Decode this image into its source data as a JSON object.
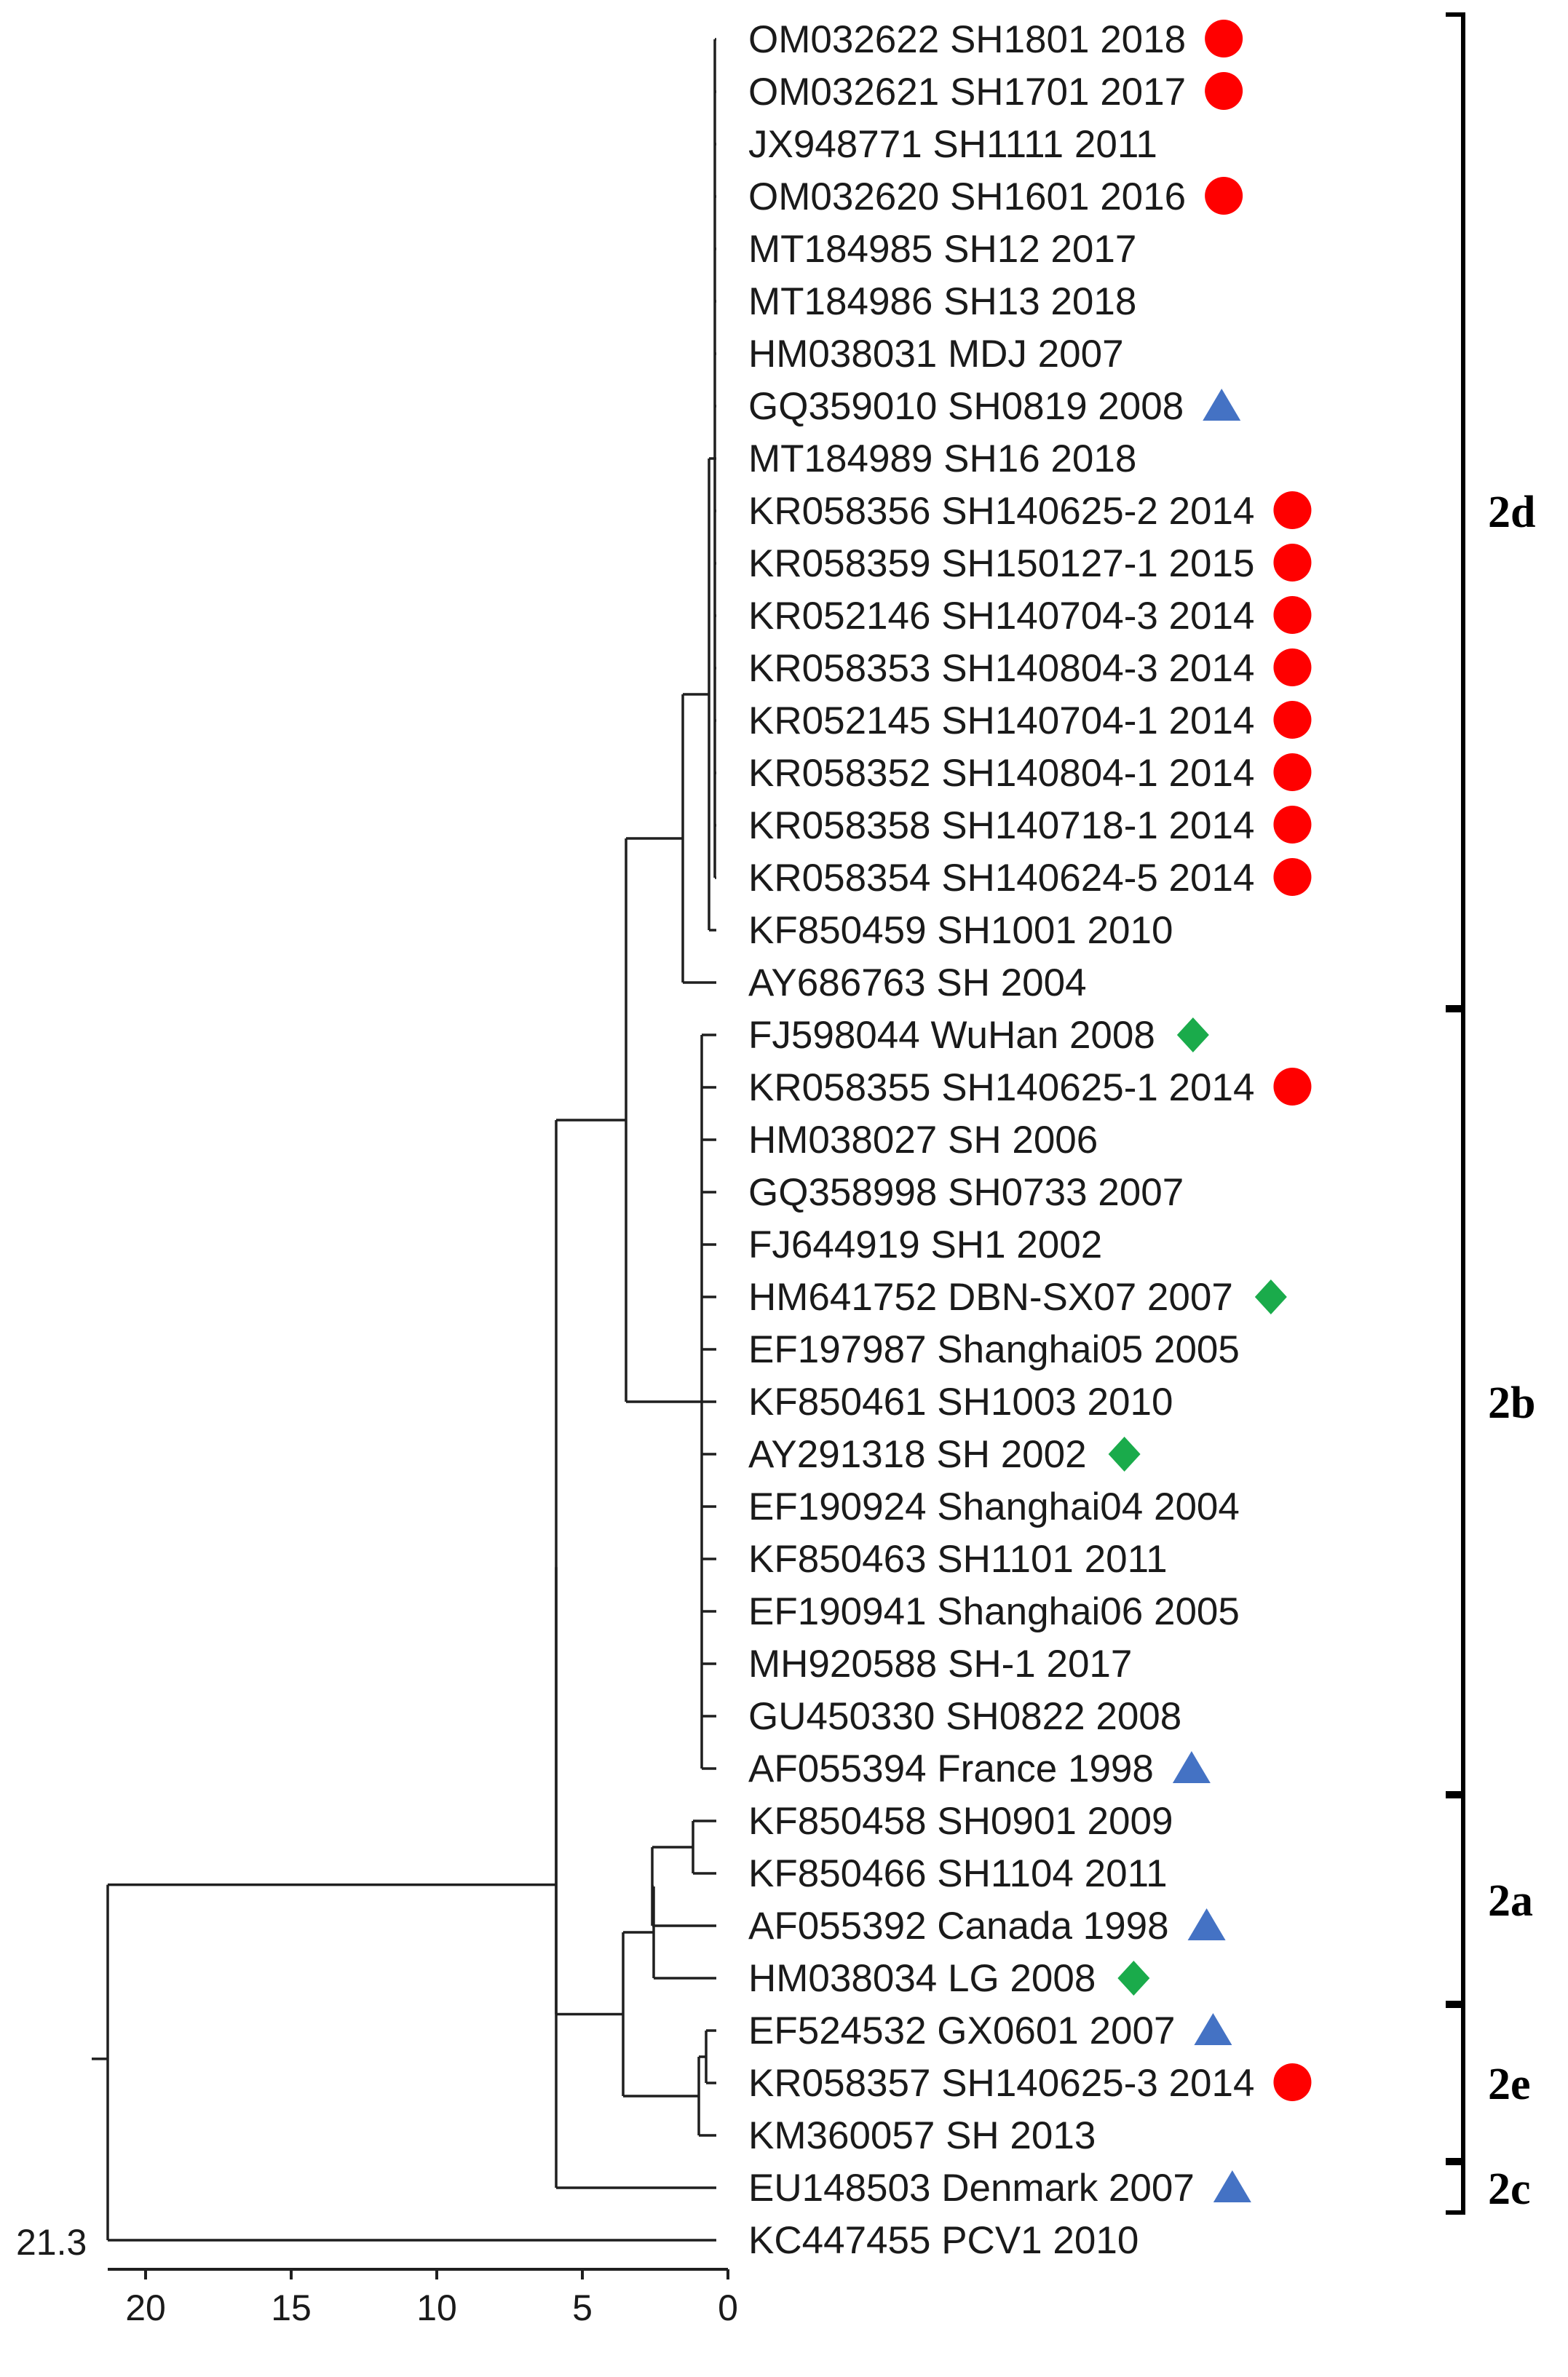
{
  "tree": {
    "scale_label": "21.3",
    "axis_ticks": [
      {
        "label": "20",
        "value": 20
      },
      {
        "label": "15",
        "value": 15
      },
      {
        "label": "10",
        "value": 10
      },
      {
        "label": "5",
        "value": 5
      },
      {
        "label": "0",
        "value": 0
      }
    ],
    "marker_colors": {
      "circle": "#ff0000",
      "triangle": "#4472c4",
      "diamond": "#1aab4b"
    },
    "leaves": [
      {
        "label": "OM032622 SH1801 2018",
        "marker": "circle"
      },
      {
        "label": "OM032621 SH1701 2017",
        "marker": "circle"
      },
      {
        "label": "JX948771 SH1111 2011",
        "marker": "none"
      },
      {
        "label": "OM032620 SH1601 2016",
        "marker": "circle"
      },
      {
        "label": "MT184985 SH12 2017",
        "marker": "none"
      },
      {
        "label": "MT184986 SH13 2018",
        "marker": "none"
      },
      {
        "label": "HM038031 MDJ 2007",
        "marker": "none"
      },
      {
        "label": "GQ359010 SH0819 2008",
        "marker": "triangle"
      },
      {
        "label": "MT184989 SH16 2018",
        "marker": "none"
      },
      {
        "label": "KR058356 SH140625-2 2014",
        "marker": "circle"
      },
      {
        "label": "KR058359 SH150127-1 2015",
        "marker": "circle"
      },
      {
        "label": "KR052146  SH140704-3 2014",
        "marker": "circle"
      },
      {
        "label": "KR058353  SH140804-3 2014",
        "marker": "circle"
      },
      {
        "label": "KR052145 SH140704-1 2014",
        "marker": "circle"
      },
      {
        "label": "KR058352 SH140804-1 2014",
        "marker": "circle"
      },
      {
        "label": "KR058358 SH140718-1 2014",
        "marker": "circle"
      },
      {
        "label": "KR058354  SH140624-5 2014",
        "marker": "circle"
      },
      {
        "label": "KF850459 SH1001 2010",
        "marker": "none"
      },
      {
        "label": "AY686763 SH 2004",
        "marker": "none"
      },
      {
        "label": "FJ598044 WuHan 2008",
        "marker": "diamond"
      },
      {
        "label": "KR058355 SH140625-1 2014",
        "marker": "circle"
      },
      {
        "label": "HM038027 SH 2006",
        "marker": "none"
      },
      {
        "label": "GQ358998 SH0733 2007",
        "marker": "none"
      },
      {
        "label": "FJ644919 SH1 2002",
        "marker": "none"
      },
      {
        "label": "HM641752 DBN-SX07 2007",
        "marker": "diamond"
      },
      {
        "label": "EF197987 Shanghai05 2005",
        "marker": "none"
      },
      {
        "label": "KF850461 SH1003 2010",
        "marker": "none"
      },
      {
        "label": "AY291318 SH 2002",
        "marker": "diamond"
      },
      {
        "label": "EF190924 Shanghai04 2004",
        "marker": "none"
      },
      {
        "label": "KF850463 SH1101 2011",
        "marker": "none"
      },
      {
        "label": "EF190941 Shanghai06 2005",
        "marker": "none"
      },
      {
        "label": "MH920588 SH-1 2017",
        "marker": "none"
      },
      {
        "label": "GU450330 SH0822 2008",
        "marker": "none"
      },
      {
        "label": "AF055394 France 1998",
        "marker": "triangle"
      },
      {
        "label": "KF850458 SH0901 2009",
        "marker": "none"
      },
      {
        "label": "KF850466 SH1104 2011",
        "marker": "none"
      },
      {
        "label": "AF055392 Canada 1998",
        "marker": "triangle"
      },
      {
        "label": "HM038034 LG 2008",
        "marker": "diamond"
      },
      {
        "label": "EF524532 GX0601 2007",
        "marker": "triangle"
      },
      {
        "label": "KR058357 SH140625-3 2014",
        "marker": "circle"
      },
      {
        "label": "KM360057 SH 2013",
        "marker": "none"
      },
      {
        "label": "EU148503 Denmark 2007",
        "marker": "triangle"
      },
      {
        "label": "KC447455 PCV1 2010",
        "marker": "none"
      }
    ],
    "clades": [
      {
        "label": "2d",
        "first": 0,
        "last": 18
      },
      {
        "label": "2b",
        "first": 19,
        "last": 33
      },
      {
        "label": "2a",
        "first": 34,
        "last": 37
      },
      {
        "label": "2e",
        "first": 38,
        "last": 40
      },
      {
        "label": "2c",
        "first": 41,
        "last": 41
      }
    ]
  }
}
